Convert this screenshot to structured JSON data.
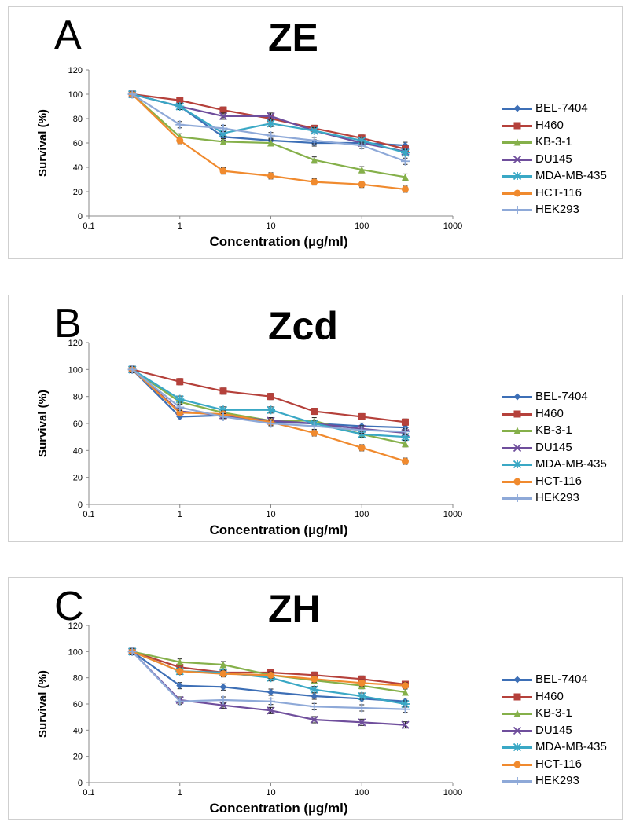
{
  "legend_series": [
    "BEL-7404",
    "H460",
    "KB-3-1",
    "DU145",
    "MDA-MB-435",
    "HCT-116",
    "HEK293"
  ],
  "colors": [
    "#3d6fb6",
    "#b5413b",
    "#85b04a",
    "#6f4e9c",
    "#3aa8c5",
    "#f08a2e",
    "#8ea9d8"
  ],
  "markers": [
    "diamond",
    "square",
    "triangle",
    "x",
    "star",
    "circle",
    "plus"
  ],
  "chart_data": [
    {
      "panel": "A",
      "title": "ZE",
      "type": "line",
      "xscale": "log",
      "xlim": [
        0.1,
        1000
      ],
      "ylim": [
        0,
        120
      ],
      "xticks": [
        "0.1",
        "1",
        "10",
        "100",
        "1000"
      ],
      "yticks": [
        "0",
        "20",
        "40",
        "60",
        "80",
        "100",
        "120"
      ],
      "xlabel": "Concentration (µg/ml)",
      "ylabel": "Survival (%)",
      "x": [
        0.3,
        1,
        3,
        10,
        30,
        100,
        300
      ],
      "series": [
        {
          "name": "BEL-7404",
          "values": [
            100,
            90,
            65,
            62,
            60,
            60,
            58
          ]
        },
        {
          "name": "H460",
          "values": [
            100,
            95,
            87,
            80,
            72,
            64,
            55
          ]
        },
        {
          "name": "KB-3-1",
          "values": [
            100,
            65,
            61,
            60,
            46,
            38,
            32
          ]
        },
        {
          "name": "DU145",
          "values": [
            100,
            90,
            82,
            82,
            70,
            60,
            53
          ]
        },
        {
          "name": "MDA-MB-435",
          "values": [
            100,
            90,
            68,
            76,
            70,
            62,
            52
          ]
        },
        {
          "name": "HCT-116",
          "values": [
            100,
            62,
            37,
            33,
            28,
            26,
            22
          ]
        },
        {
          "name": "HEK293",
          "values": [
            100,
            75,
            72,
            66,
            62,
            58,
            45
          ]
        }
      ],
      "legend_position": "right"
    },
    {
      "panel": "B",
      "title": "Zcd",
      "type": "line",
      "xscale": "log",
      "xlim": [
        0.1,
        1000
      ],
      "ylim": [
        0,
        120
      ],
      "xticks": [
        "0.1",
        "1",
        "10",
        "100",
        "1000"
      ],
      "yticks": [
        "0",
        "20",
        "40",
        "60",
        "80",
        "100",
        "120"
      ],
      "xlabel": "Concentration (µg/ml)",
      "ylabel": "Survival (%)",
      "x": [
        0.3,
        1,
        3,
        10,
        30,
        100,
        300
      ],
      "series": [
        {
          "name": "BEL-7404",
          "values": [
            100,
            65,
            66,
            61,
            60,
            58,
            57
          ]
        },
        {
          "name": "H460",
          "values": [
            100,
            91,
            84,
            80,
            69,
            65,
            61
          ]
        },
        {
          "name": "KB-3-1",
          "values": [
            100,
            76,
            68,
            62,
            62,
            52,
            45
          ]
        },
        {
          "name": "DU145",
          "values": [
            100,
            69,
            66,
            62,
            60,
            56,
            53
          ]
        },
        {
          "name": "MDA-MB-435",
          "values": [
            100,
            78,
            70,
            70,
            60,
            52,
            50
          ]
        },
        {
          "name": "HCT-116",
          "values": [
            100,
            68,
            67,
            61,
            53,
            42,
            32
          ]
        },
        {
          "name": "HEK293",
          "values": [
            100,
            72,
            65,
            60,
            58,
            55,
            54
          ]
        }
      ],
      "legend_position": "right"
    },
    {
      "panel": "C",
      "title": "ZH",
      "type": "line",
      "xscale": "log",
      "xlim": [
        0.1,
        1000
      ],
      "ylim": [
        0,
        120
      ],
      "xticks": [
        "0.1",
        "1",
        "10",
        "100",
        "1000"
      ],
      "yticks": [
        "0",
        "20",
        "40",
        "60",
        "80",
        "100",
        "120"
      ],
      "xlabel": "Concentration (µg/ml)",
      "ylabel": "Survival (%)",
      "x": [
        0.3,
        1,
        3,
        10,
        30,
        100,
        300
      ],
      "series": [
        {
          "name": "BEL-7404",
          "values": [
            100,
            74,
            73,
            69,
            66,
            64,
            62
          ]
        },
        {
          "name": "H460",
          "values": [
            100,
            88,
            84,
            84,
            82,
            79,
            75
          ]
        },
        {
          "name": "KB-3-1",
          "values": [
            100,
            92,
            90,
            82,
            78,
            74,
            69
          ]
        },
        {
          "name": "DU145",
          "values": [
            100,
            63,
            59,
            55,
            48,
            46,
            44
          ]
        },
        {
          "name": "MDA-MB-435",
          "values": [
            100,
            85,
            84,
            80,
            71,
            66,
            60
          ]
        },
        {
          "name": "HCT-116",
          "values": [
            100,
            85,
            83,
            82,
            79,
            76,
            74
          ]
        },
        {
          "name": "HEK293",
          "values": [
            100,
            62,
            63,
            62,
            58,
            57,
            56
          ]
        }
      ],
      "legend_position": "right"
    }
  ]
}
